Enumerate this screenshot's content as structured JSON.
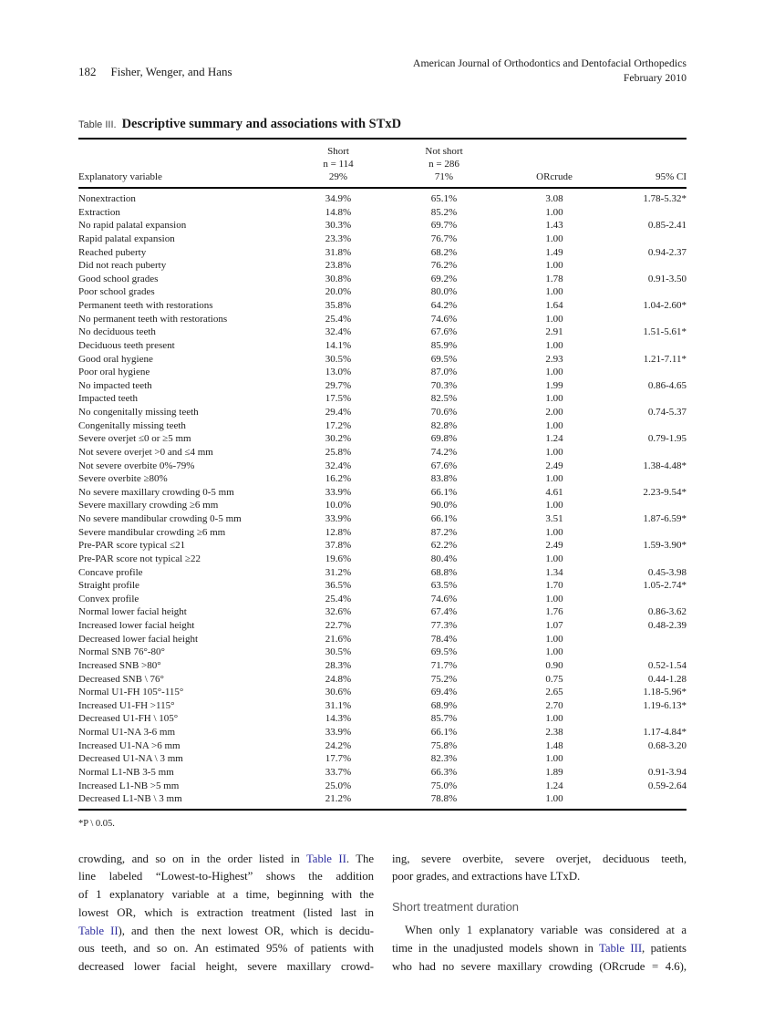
{
  "colors": {
    "text": "#1b1b1b",
    "link_blue": "#2b2b9e",
    "section_heading_gray": "#5b5b5e",
    "rule_black": "#000000"
  },
  "page_header": {
    "page_number": "182",
    "authors": "Fisher, Wenger, and Hans",
    "journal_name": "American Journal of Orthodontics and Dentofacial Orthopedics",
    "issue_date": "February 2010"
  },
  "table": {
    "label": "Table III.",
    "title": "Descriptive summary and associations with STxD",
    "header": {
      "explanatory": "Explanatory variable",
      "short_l1": "Short",
      "short_l2": "n = 114",
      "short_l3": "29%",
      "notshort_l1": "Not short",
      "notshort_l2": "n = 286",
      "notshort_l3": "71%",
      "or": "ORcrude",
      "ci": "95% CI"
    },
    "rows": [
      [
        "Nonextraction",
        "34.9%",
        "65.1%",
        "3.08",
        "1.78-5.32*"
      ],
      [
        "Extraction",
        "14.8%",
        "85.2%",
        "1.00",
        ""
      ],
      [
        "No rapid palatal expansion",
        "30.3%",
        "69.7%",
        "1.43",
        "0.85-2.41"
      ],
      [
        "Rapid palatal expansion",
        "23.3%",
        "76.7%",
        "1.00",
        ""
      ],
      [
        "Reached puberty",
        "31.8%",
        "68.2%",
        "1.49",
        "0.94-2.37"
      ],
      [
        "Did not reach puberty",
        "23.8%",
        "76.2%",
        "1.00",
        ""
      ],
      [
        "Good school grades",
        "30.8%",
        "69.2%",
        "1.78",
        "0.91-3.50"
      ],
      [
        "Poor school grades",
        "20.0%",
        "80.0%",
        "1.00",
        ""
      ],
      [
        "Permanent teeth with restorations",
        "35.8%",
        "64.2%",
        "1.64",
        "1.04-2.60*"
      ],
      [
        "No permanent teeth with restorations",
        "25.4%",
        "74.6%",
        "1.00",
        ""
      ],
      [
        "No deciduous teeth",
        "32.4%",
        "67.6%",
        "2.91",
        "1.51-5.61*"
      ],
      [
        "Deciduous teeth present",
        "14.1%",
        "85.9%",
        "1.00",
        ""
      ],
      [
        "Good oral hygiene",
        "30.5%",
        "69.5%",
        "2.93",
        "1.21-7.11*"
      ],
      [
        "Poor oral hygiene",
        "13.0%",
        "87.0%",
        "1.00",
        ""
      ],
      [
        "No impacted teeth",
        "29.7%",
        "70.3%",
        "1.99",
        "0.86-4.65"
      ],
      [
        "Impacted teeth",
        "17.5%",
        "82.5%",
        "1.00",
        ""
      ],
      [
        "No congenitally missing teeth",
        "29.4%",
        "70.6%",
        "2.00",
        "0.74-5.37"
      ],
      [
        "Congenitally missing teeth",
        "17.2%",
        "82.8%",
        "1.00",
        ""
      ],
      [
        "Severe overjet ≤0 or ≥5 mm",
        "30.2%",
        "69.8%",
        "1.24",
        "0.79-1.95"
      ],
      [
        "Not severe overjet >0 and ≤4 mm",
        "25.8%",
        "74.2%",
        "1.00",
        ""
      ],
      [
        "Not severe overbite 0%-79%",
        "32.4%",
        "67.6%",
        "2.49",
        "1.38-4.48*"
      ],
      [
        "Severe overbite ≥80%",
        "16.2%",
        "83.8%",
        "1.00",
        ""
      ],
      [
        "No severe maxillary crowding 0-5 mm",
        "33.9%",
        "66.1%",
        "4.61",
        "2.23-9.54*"
      ],
      [
        "Severe maxillary crowding ≥6 mm",
        "10.0%",
        "90.0%",
        "1.00",
        ""
      ],
      [
        "No severe mandibular crowding 0-5 mm",
        "33.9%",
        "66.1%",
        "3.51",
        "1.87-6.59*"
      ],
      [
        "Severe mandibular crowding ≥6 mm",
        "12.8%",
        "87.2%",
        "1.00",
        ""
      ],
      [
        "Pre-PAR score typical ≤21",
        "37.8%",
        "62.2%",
        "2.49",
        "1.59-3.90*"
      ],
      [
        "Pre-PAR score not typical ≥22",
        "19.6%",
        "80.4%",
        "1.00",
        ""
      ],
      [
        "Concave profile",
        "31.2%",
        "68.8%",
        "1.34",
        "0.45-3.98"
      ],
      [
        "Straight profile",
        "36.5%",
        "63.5%",
        "1.70",
        "1.05-2.74*"
      ],
      [
        "Convex profile",
        "25.4%",
        "74.6%",
        "1.00",
        ""
      ],
      [
        "Normal lower facial height",
        "32.6%",
        "67.4%",
        "1.76",
        "0.86-3.62"
      ],
      [
        "Increased lower facial height",
        "22.7%",
        "77.3%",
        "1.07",
        "0.48-2.39"
      ],
      [
        "Decreased lower facial height",
        "21.6%",
        "78.4%",
        "1.00",
        ""
      ],
      [
        "Normal SNB 76°-80°",
        "30.5%",
        "69.5%",
        "1.00",
        ""
      ],
      [
        "Increased SNB >80°",
        "28.3%",
        "71.7%",
        "0.90",
        "0.52-1.54"
      ],
      [
        "Decreased SNB \\ 76°",
        "24.8%",
        "75.2%",
        "0.75",
        "0.44-1.28"
      ],
      [
        "Normal U1-FH 105°-115°",
        "30.6%",
        "69.4%",
        "2.65",
        "1.18-5.96*"
      ],
      [
        "Increased U1-FH >115°",
        "31.1%",
        "68.9%",
        "2.70",
        "1.19-6.13*"
      ],
      [
        "Decreased U1-FH \\ 105°",
        "14.3%",
        "85.7%",
        "1.00",
        ""
      ],
      [
        "Normal U1-NA 3-6 mm",
        "33.9%",
        "66.1%",
        "2.38",
        "1.17-4.84*"
      ],
      [
        "Increased U1-NA >6 mm",
        "24.2%",
        "75.8%",
        "1.48",
        "0.68-3.20"
      ],
      [
        "Decreased U1-NA \\ 3 mm",
        "17.7%",
        "82.3%",
        "1.00",
        ""
      ],
      [
        "Normal L1-NB 3-5 mm",
        "33.7%",
        "66.3%",
        "1.89",
        "0.91-3.94"
      ],
      [
        "Increased L1-NB >5 mm",
        "25.0%",
        "75.0%",
        "1.24",
        "0.59-2.64"
      ],
      [
        "Decreased L1-NB \\ 3 mm",
        "21.2%",
        "78.8%",
        "1.00",
        ""
      ]
    ],
    "footnote": "*P \\ 0.05."
  },
  "body": {
    "left_column_lines": [
      {
        "segs": [
          {
            "text": "crowding, and so on in the order listed in "
          },
          {
            "text": "Table II",
            "link": true,
            "name": "table-ii-link"
          },
          {
            "text": ". The"
          }
        ]
      },
      {
        "segs": [
          {
            "text": "line labeled “Lowest-to-Highest” shows the addition"
          }
        ]
      },
      {
        "segs": [
          {
            "text": "of 1 explanatory variable at a time, beginning with the"
          }
        ]
      },
      {
        "segs": [
          {
            "text": "lowest OR, which is extraction treatment (listed last in"
          }
        ]
      },
      {
        "segs": [
          {
            "text": "Table II",
            "link": true,
            "name": "table-ii-link"
          },
          {
            "text": "), and then the next lowest OR, which is decidu-"
          }
        ]
      },
      {
        "segs": [
          {
            "text": "ous teeth, and so on. An estimated 95% of patients with"
          }
        ]
      },
      {
        "segs": [
          {
            "text": "decreased lower facial height, severe maxillary crowd-"
          }
        ]
      }
    ],
    "right_column": {
      "para1_lines": [
        {
          "segs": [
            {
              "text": "ing, severe overbite, severe overjet, deciduous teeth,"
            }
          ]
        },
        {
          "segs": [
            {
              "text": "poor grades, and extractions have LTxD."
            }
          ],
          "justify": false
        }
      ],
      "heading": "Short treatment duration",
      "para2_lines": [
        {
          "segs": [
            {
              "text": "When only 1 explanatory variable was considered at a"
            }
          ],
          "indent": true
        },
        {
          "segs": [
            {
              "text": "time in the unadjusted models shown in "
            },
            {
              "text": "Table III",
              "link": true,
              "name": "table-iii-link"
            },
            {
              "text": ", patients"
            }
          ]
        },
        {
          "segs": [
            {
              "text": "who had no severe maxillary crowding (ORcrude = 4.6),"
            }
          ]
        }
      ]
    }
  }
}
